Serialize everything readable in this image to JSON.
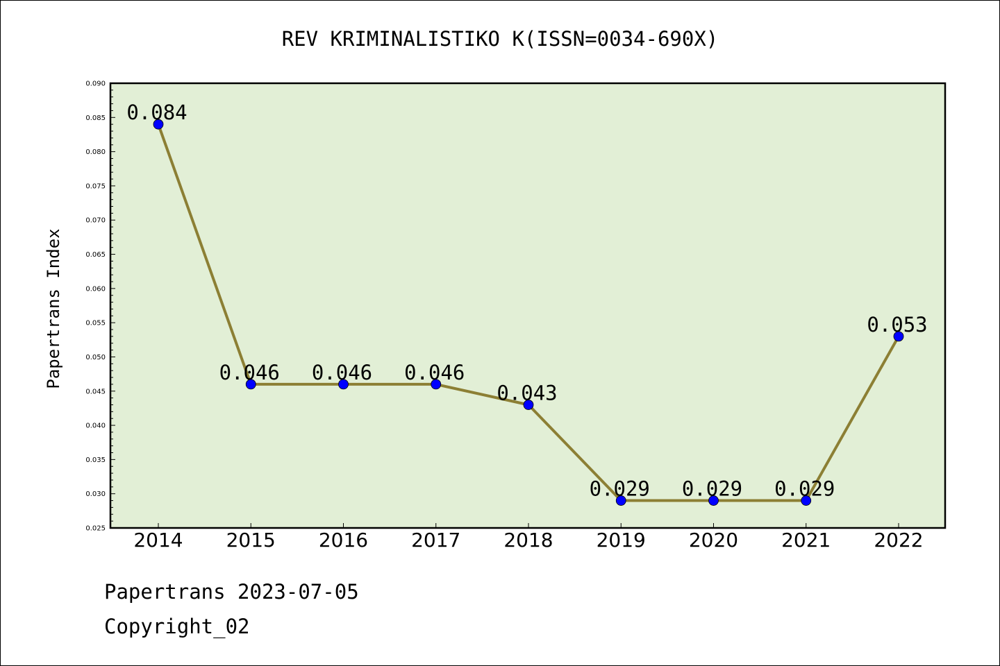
{
  "chart_data": {
    "type": "line",
    "title": "REV KRIMINALISTIKO K(ISSN=0034-690X)",
    "xlabel": "",
    "ylabel": "Papertrans Index",
    "categories": [
      "2014",
      "2015",
      "2016",
      "2017",
      "2018",
      "2019",
      "2020",
      "2021",
      "2022"
    ],
    "values": [
      0.084,
      0.046,
      0.046,
      0.046,
      0.043,
      0.029,
      0.029,
      0.029,
      0.053
    ],
    "data_labels": [
      "0.084",
      "0.046",
      "0.046",
      "0.046",
      "0.043",
      "0.029",
      "0.029",
      "0.029",
      "0.053"
    ],
    "ylim": [
      0.025,
      0.09
    ],
    "yticks": [
      "0.025",
      "0.030",
      "0.035",
      "0.040",
      "0.045",
      "0.050",
      "0.055",
      "0.060",
      "0.065",
      "0.070",
      "0.075",
      "0.080",
      "0.085",
      "0.090"
    ],
    "grid": false,
    "colors": {
      "line": "#8c7f34",
      "marker": "#0000ff",
      "plot_bg": "#e2efd6"
    }
  },
  "footer": {
    "date_line": "Papertrans 2023-07-05",
    "copyright": "Copyright_02"
  }
}
